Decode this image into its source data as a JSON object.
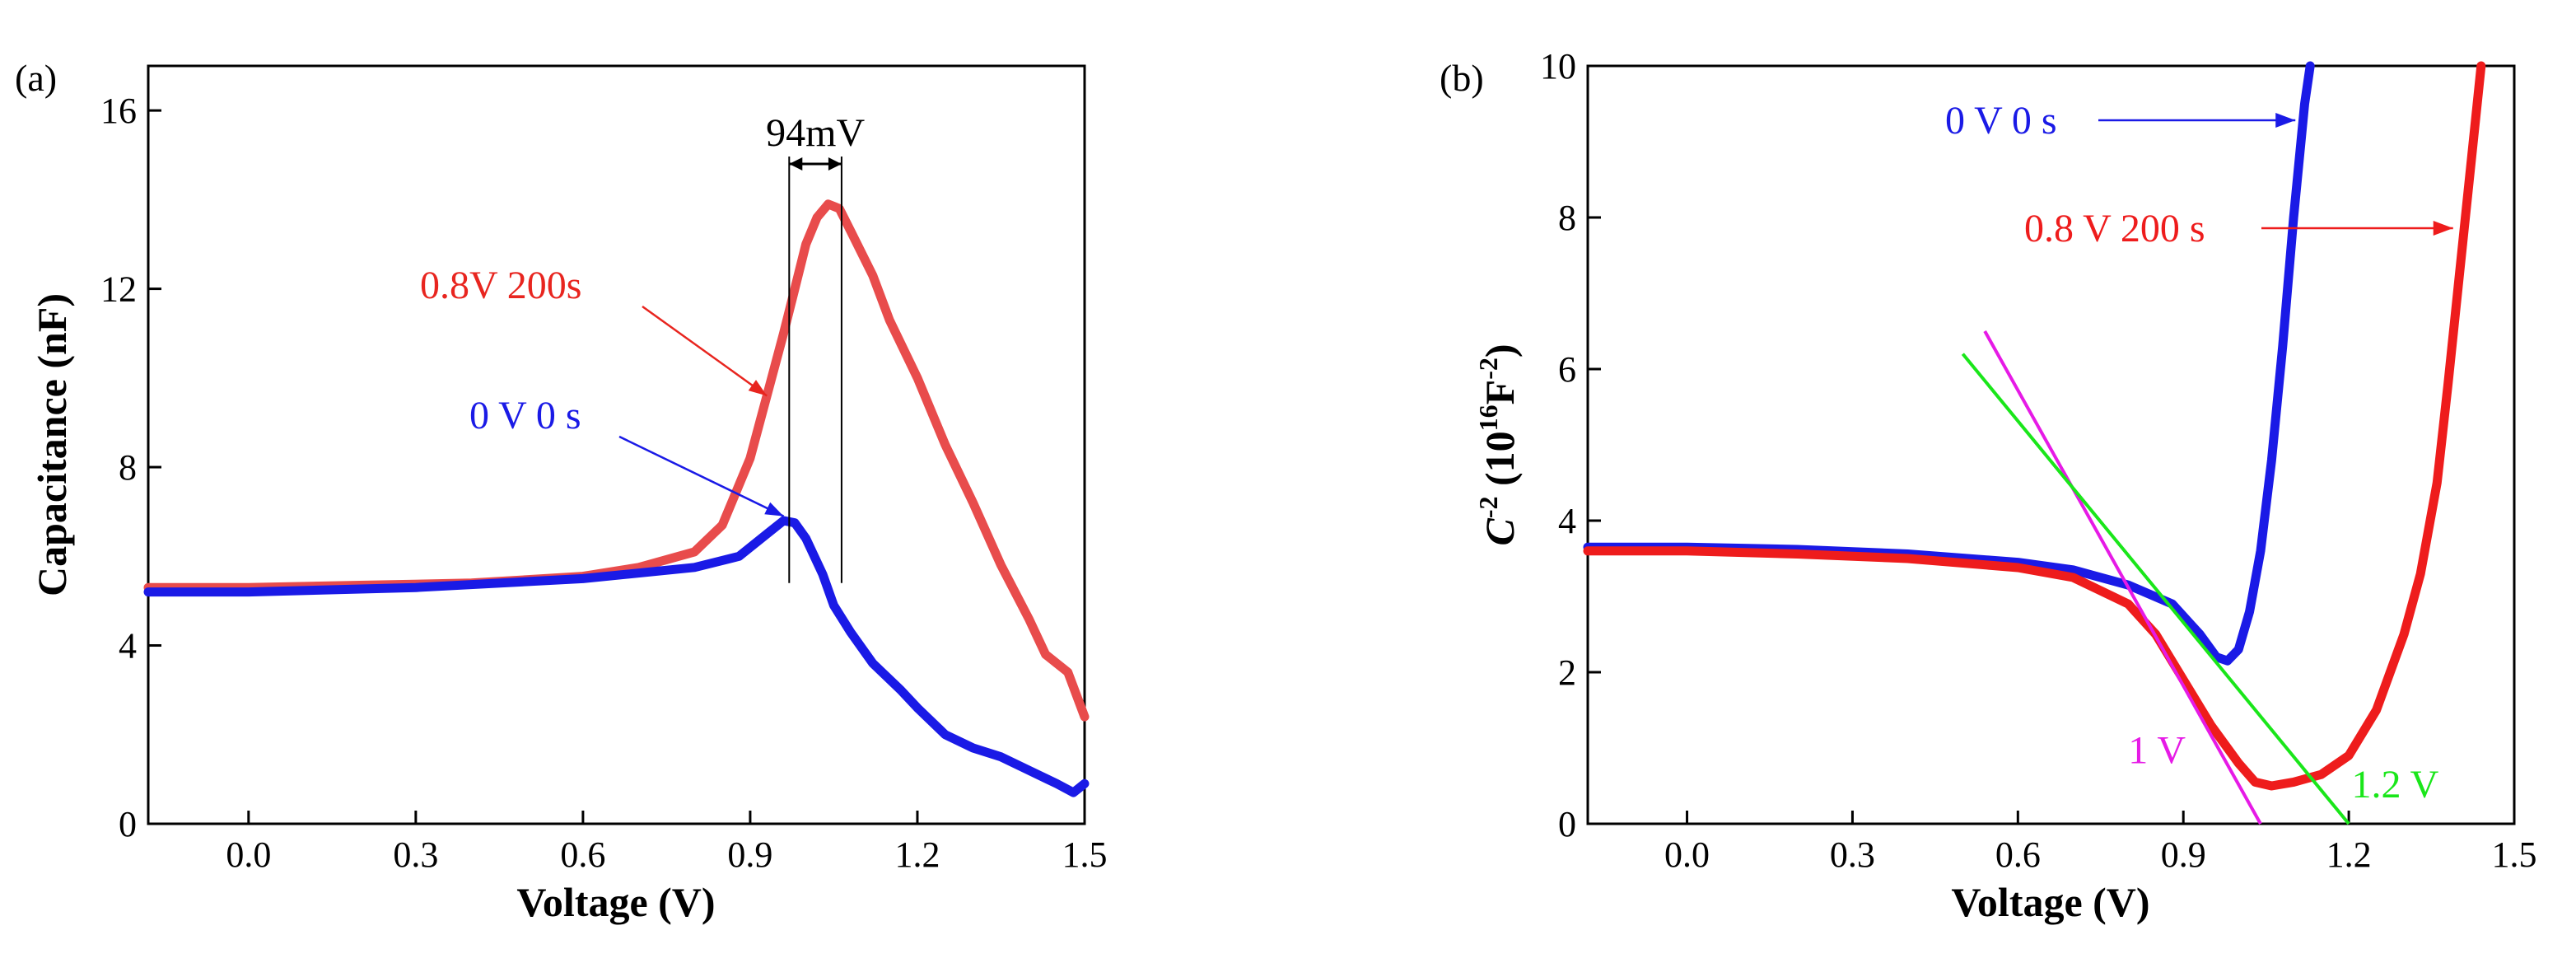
{
  "chart_data": [
    {
      "panel": "(a)",
      "type": "line",
      "xlabel": "Voltage (V)",
      "ylabel": "Capacitance (nF)",
      "xlim": [
        -0.18,
        1.5
      ],
      "ylim": [
        0,
        17
      ],
      "xticks": [
        "0.0",
        "0.3",
        "0.6",
        "0.9",
        "1.2",
        "1.5"
      ],
      "yticks": [
        "0",
        "4",
        "8",
        "12",
        "16"
      ],
      "series": [
        {
          "name": "0.8V 200s",
          "color": "#e84c4c",
          "x": [
            -0.18,
            0.0,
            0.2,
            0.4,
            0.6,
            0.7,
            0.8,
            0.85,
            0.9,
            0.93,
            0.96,
            0.98,
            1.0,
            1.02,
            1.04,
            1.06,
            1.08,
            1.1,
            1.12,
            1.15,
            1.2,
            1.25,
            1.3,
            1.35,
            1.4,
            1.43,
            1.47,
            1.5
          ],
          "values": [
            5.3,
            5.3,
            5.35,
            5.4,
            5.55,
            5.75,
            6.1,
            6.7,
            8.2,
            9.6,
            11.0,
            12.0,
            13.0,
            13.6,
            13.9,
            13.8,
            13.3,
            12.8,
            12.3,
            11.3,
            10.0,
            8.5,
            7.2,
            5.8,
            4.6,
            3.8,
            3.4,
            2.4
          ]
        },
        {
          "name": "0 V 0 s",
          "color": "#1a1ae6",
          "x": [
            -0.18,
            0.0,
            0.3,
            0.6,
            0.8,
            0.88,
            0.93,
            0.96,
            0.98,
            1.0,
            1.03,
            1.05,
            1.08,
            1.12,
            1.17,
            1.2,
            1.25,
            1.3,
            1.35,
            1.4,
            1.45,
            1.48,
            1.5
          ],
          "values": [
            5.2,
            5.2,
            5.3,
            5.5,
            5.75,
            6.0,
            6.5,
            6.8,
            6.75,
            6.4,
            5.6,
            4.9,
            4.3,
            3.6,
            3.0,
            2.6,
            2.0,
            1.7,
            1.5,
            1.2,
            0.9,
            0.7,
            0.9
          ]
        }
      ],
      "annotations": [
        {
          "text": "94mV",
          "color": "#000000"
        },
        {
          "text": "0.8V 200s",
          "color": "#e8251f"
        },
        {
          "text": "0 V 0 s",
          "color": "#1a1ae6"
        }
      ],
      "vlines": [
        0.97,
        1.064
      ]
    },
    {
      "panel": "(b)",
      "type": "line",
      "xlabel": "Voltage (V)",
      "ylabel_main": "C",
      "ylabel_sup1": "-2",
      "ylabel_mid": " (10",
      "ylabel_sup2": "16",
      "ylabel_f": "F",
      "ylabel_sup3": "-2",
      "ylabel_end": ")",
      "xlim": [
        -0.18,
        1.5
      ],
      "ylim": [
        0,
        10
      ],
      "xticks": [
        "0.0",
        "0.3",
        "0.6",
        "0.9",
        "1.2",
        "1.5"
      ],
      "yticks": [
        "0",
        "2",
        "4",
        "6",
        "8",
        "10"
      ],
      "series": [
        {
          "name": "0 V 0 s",
          "color": "#1a1ae6",
          "x": [
            -0.18,
            0.0,
            0.2,
            0.4,
            0.6,
            0.7,
            0.8,
            0.88,
            0.93,
            0.96,
            0.98,
            1.0,
            1.02,
            1.04,
            1.06,
            1.08,
            1.1,
            1.12,
            1.13
          ],
          "values": [
            3.65,
            3.65,
            3.62,
            3.56,
            3.45,
            3.35,
            3.15,
            2.9,
            2.5,
            2.2,
            2.15,
            2.3,
            2.8,
            3.6,
            4.8,
            6.3,
            8.0,
            9.5,
            10.0
          ]
        },
        {
          "name": "0.8 V 200 s",
          "color": "#ee1c1c",
          "x": [
            -0.18,
            0.0,
            0.2,
            0.4,
            0.6,
            0.7,
            0.8,
            0.85,
            0.9,
            0.95,
            1.0,
            1.03,
            1.06,
            1.1,
            1.15,
            1.2,
            1.25,
            1.3,
            1.33,
            1.36,
            1.38,
            1.4,
            1.42,
            1.44
          ],
          "values": [
            3.6,
            3.6,
            3.56,
            3.5,
            3.38,
            3.25,
            2.9,
            2.5,
            1.9,
            1.3,
            0.8,
            0.55,
            0.5,
            0.55,
            0.65,
            0.9,
            1.5,
            2.5,
            3.3,
            4.5,
            5.8,
            7.2,
            8.6,
            10.0
          ]
        }
      ],
      "fit_lines": [
        {
          "label": "1 V",
          "color": "#e61ae6",
          "x": [
            0.54,
            1.04
          ],
          "values": [
            6.5,
            0.0
          ]
        },
        {
          "label": "1.2 V",
          "color": "#1ae61a",
          "x": [
            0.5,
            1.2
          ],
          "values": [
            6.2,
            0.0
          ]
        }
      ],
      "annotations": [
        {
          "text": "0 V 0 s",
          "color": "#1a1ae6"
        },
        {
          "text": "0.8 V 200 s",
          "color": "#ee1c1c"
        }
      ]
    }
  ]
}
